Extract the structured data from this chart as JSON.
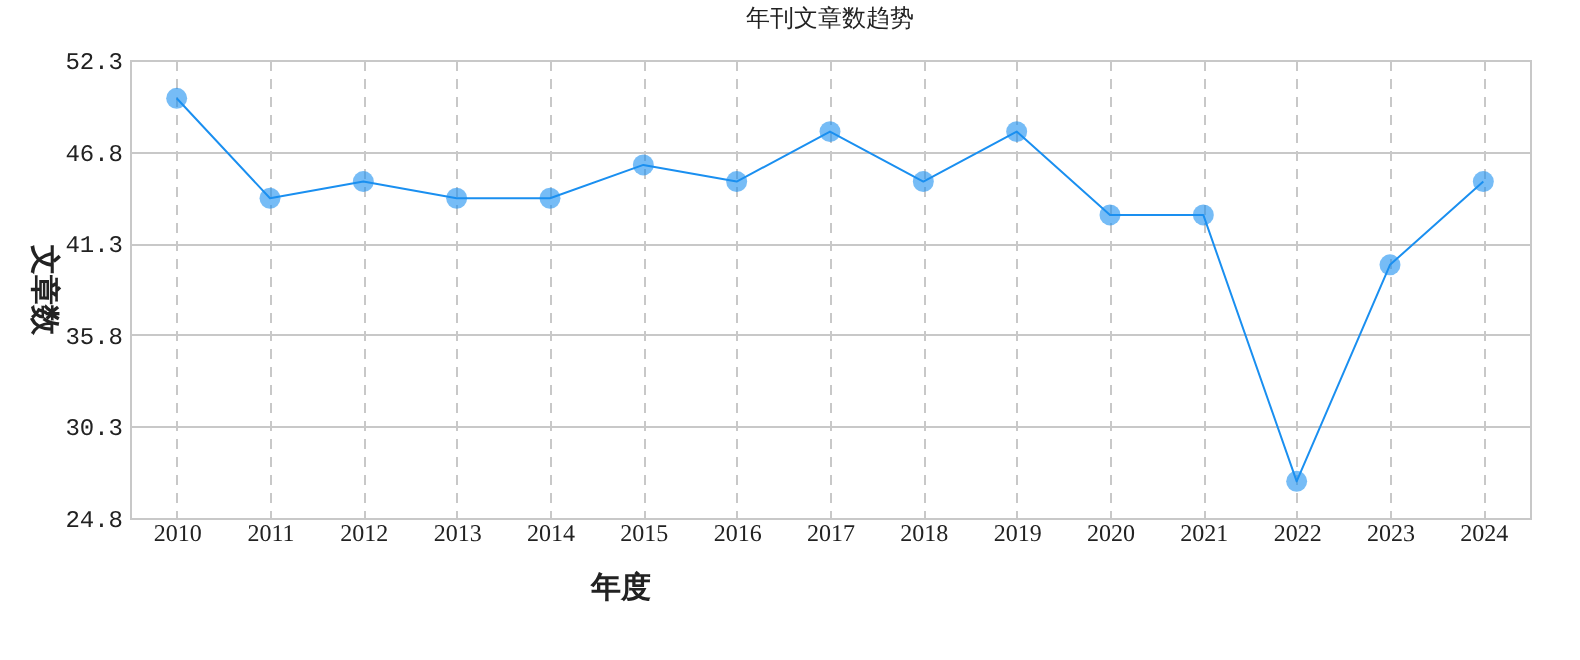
{
  "chart_data": {
    "type": "line",
    "title": "年刊文章数趋势",
    "xlabel": "年度",
    "ylabel": "文章数",
    "categories": [
      "2010",
      "2011",
      "2012",
      "2013",
      "2014",
      "2015",
      "2016",
      "2017",
      "2018",
      "2019",
      "2020",
      "2021",
      "2022",
      "2023",
      "2024"
    ],
    "series": [
      {
        "color": "#1a8ff0",
        "values": [
          50,
          44,
          45,
          44,
          44,
          46,
          45,
          48,
          45,
          48,
          43,
          43,
          27,
          40,
          45
        ]
      }
    ],
    "ylim": [
      24.8,
      52.3
    ],
    "yticks": [
      24.8,
      30.3,
      35.8,
      41.3,
      46.8,
      52.3
    ],
    "grid": true,
    "marker": "circle",
    "line_style": "solid"
  }
}
